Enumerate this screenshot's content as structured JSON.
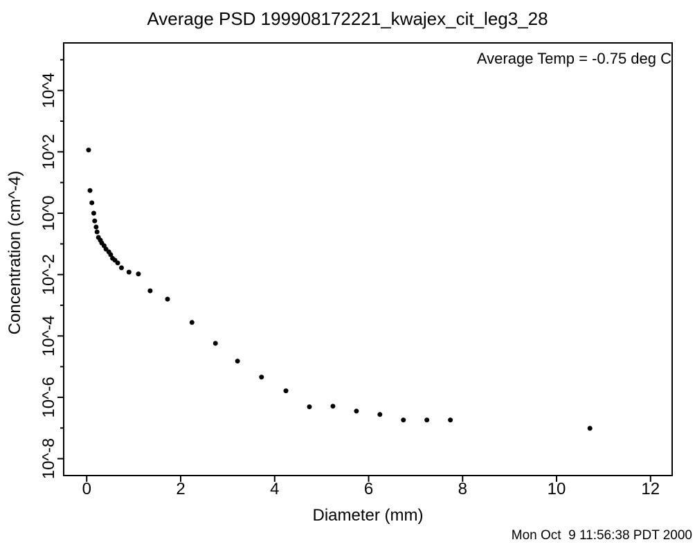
{
  "page": {
    "background": "#ffffff",
    "foreground": "#000000"
  },
  "header": {
    "title": "Average PSD 199908172221_kwajex_cit_leg3_28"
  },
  "footer": {
    "timestamp": "Mon Oct  9 11:56:38 PDT 2000"
  },
  "chart_data": {
    "type": "scatter",
    "title": "Average PSD 199908172221_kwajex_cit_leg3_28",
    "annotation": "Average Temp = -0.75 deg C",
    "xlabel": "Diameter (mm)",
    "ylabel": "Concentration (cm^-4)",
    "grid": false,
    "legend": false,
    "x_axis": {
      "lim": [
        -0.49,
        12.46
      ],
      "major_ticks": [
        0,
        2,
        4,
        6,
        8,
        10,
        12
      ],
      "tick_labels": [
        "0",
        "2",
        "4",
        "6",
        "8",
        "10",
        "12"
      ]
    },
    "y_axis": {
      "scale": "log10",
      "lim_exponents": [
        -8.55,
        5.55
      ],
      "tick_exponents": [
        5,
        4,
        3,
        2,
        1,
        0,
        -1,
        -2,
        -3,
        -4,
        -5,
        -6,
        -7,
        -8
      ],
      "labeled_exponents": [
        4,
        2,
        0,
        -2,
        -4,
        -6,
        -8
      ],
      "tick_labels": [
        "10^4",
        "10^2",
        "10^0",
        "10^-2",
        "10^-4",
        "10^-6",
        "10^-8"
      ]
    },
    "marker": {
      "shape": "filled-circle",
      "color": "#000000",
      "radius_px": 3.5
    },
    "series": [
      {
        "name": "Average PSD",
        "x_mm": [
          0.04,
          0.07,
          0.11,
          0.15,
          0.17,
          0.2,
          0.22,
          0.25,
          0.29,
          0.32,
          0.37,
          0.41,
          0.47,
          0.51,
          0.55,
          0.6,
          0.66,
          0.74,
          0.9,
          1.1,
          1.35,
          1.72,
          2.24,
          2.74,
          3.21,
          3.72,
          4.24,
          4.74,
          5.24,
          5.74,
          6.24,
          6.74,
          7.24,
          7.74,
          10.71
        ],
        "log10_concentration_cm4": [
          2.06,
          0.74,
          0.34,
          0.0,
          -0.25,
          -0.45,
          -0.61,
          -0.79,
          -0.88,
          -0.97,
          -1.06,
          -1.17,
          -1.26,
          -1.35,
          -1.47,
          -1.53,
          -1.62,
          -1.78,
          -1.92,
          -1.98,
          -2.53,
          -2.8,
          -3.56,
          -4.24,
          -4.82,
          -5.34,
          -5.79,
          -6.31,
          -6.29,
          -6.45,
          -6.56,
          -6.74,
          -6.74,
          -6.74,
          -7.01
        ]
      }
    ]
  }
}
